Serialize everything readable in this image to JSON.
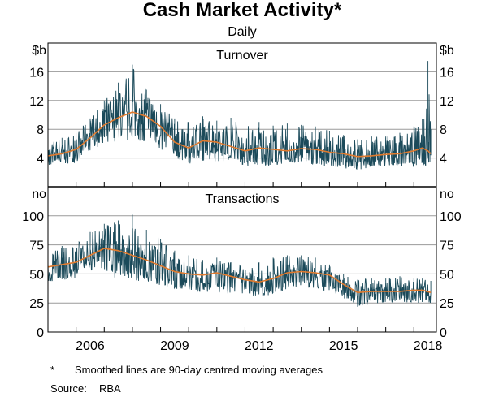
{
  "chart_data": {
    "type": "line",
    "title": "Cash Market Activity*",
    "subtitle": "Daily",
    "xlim": [
      2005,
      2018.8
    ],
    "x_ticks": [
      "2006",
      "2009",
      "2012",
      "2015",
      "2018"
    ],
    "panels": [
      {
        "title": "Turnover",
        "unit_left": "$b",
        "unit_right": "$b",
        "ylim": [
          0,
          20
        ],
        "y_ticks": [
          "4",
          "8",
          "12",
          "16"
        ],
        "series": [
          {
            "name": "Daily",
            "color": "#1b4a5a",
            "x": [
              2005.0,
              2005.5,
              2006.0,
              2006.5,
              2007.0,
              2007.5,
              2008.0,
              2008.5,
              2009.0,
              2009.5,
              2010.0,
              2010.5,
              2011.0,
              2011.5,
              2012.0,
              2012.5,
              2013.0,
              2013.5,
              2014.0,
              2014.5,
              2015.0,
              2015.5,
              2016.0,
              2016.5,
              2017.0,
              2017.5,
              2018.0,
              2018.3,
              2018.5,
              2018.6
            ],
            "low": [
              2.8,
              3.0,
              3.4,
              4.8,
              6.0,
              6.2,
              6.4,
              6.0,
              5.0,
              3.8,
              3.2,
              3.6,
              3.5,
              3.4,
              2.8,
              3.0,
              2.9,
              3.2,
              3.3,
              3.0,
              2.8,
              2.6,
              2.2,
              2.6,
              2.8,
              2.9,
              2.6,
              2.9,
              2.8,
              3.0
            ],
            "high": [
              6.4,
              6.8,
              7.5,
              9.5,
              12.0,
              14.5,
              17.0,
              13.5,
              11.5,
              9.5,
              9.0,
              9.8,
              9.2,
              9.6,
              8.6,
              9.0,
              8.5,
              8.8,
              8.6,
              8.4,
              7.8,
              7.2,
              6.6,
              7.0,
              7.0,
              7.5,
              8.4,
              9.4,
              17.5,
              8.0
            ]
          },
          {
            "name": "90-day centred moving average",
            "color": "#e07a2e",
            "x": [
              2005.0,
              2005.5,
              2006.0,
              2006.5,
              2007.0,
              2007.5,
              2008.0,
              2008.5,
              2009.0,
              2009.5,
              2010.0,
              2010.5,
              2011.0,
              2011.5,
              2012.0,
              2012.5,
              2013.0,
              2013.5,
              2014.0,
              2014.5,
              2015.0,
              2015.5,
              2016.0,
              2016.5,
              2017.0,
              2017.5,
              2018.0,
              2018.3,
              2018.5,
              2018.6
            ],
            "values": [
              4.3,
              4.6,
              5.2,
              6.8,
              8.6,
              9.6,
              10.4,
              9.8,
              8.4,
              6.2,
              5.4,
              6.4,
              6.2,
              5.6,
              5.0,
              5.4,
              5.2,
              5.0,
              5.3,
              5.2,
              4.8,
              4.6,
              4.2,
              4.3,
              4.5,
              4.6,
              5.0,
              5.4,
              5.0,
              4.6
            ]
          }
        ]
      },
      {
        "title": "Transactions",
        "unit_left": "no",
        "unit_right": "no",
        "ylim": [
          0,
          125
        ],
        "y_ticks": [
          "0",
          "25",
          "50",
          "75",
          "100"
        ],
        "series": [
          {
            "name": "Daily",
            "color": "#1b4a5a",
            "x": [
              2005.0,
              2005.5,
              2006.0,
              2006.5,
              2007.0,
              2007.5,
              2008.0,
              2008.5,
              2009.0,
              2009.5,
              2010.0,
              2010.5,
              2011.0,
              2011.5,
              2012.0,
              2012.5,
              2013.0,
              2013.5,
              2014.0,
              2014.5,
              2015.0,
              2015.5,
              2016.0,
              2016.5,
              2017.0,
              2017.5,
              2018.0,
              2018.3,
              2018.6
            ],
            "low": [
              42,
              44,
              46,
              52,
              52,
              45,
              44,
              44,
              40,
              37,
              36,
              34,
              34,
              32,
              30,
              31,
              32,
              37,
              38,
              37,
              35,
              30,
              21,
              24,
              25,
              26,
              25,
              25,
              25
            ],
            "high": [
              70,
              74,
              76,
              86,
              93,
              96,
              101,
              88,
              80,
              70,
              66,
              62,
              64,
              60,
              56,
              60,
              64,
              66,
              66,
              64,
              58,
              50,
              45,
              46,
              46,
              48,
              46,
              46,
              44
            ]
          },
          {
            "name": "90-day centred moving average",
            "color": "#e07a2e",
            "x": [
              2005.0,
              2005.5,
              2006.0,
              2006.5,
              2007.0,
              2007.5,
              2008.0,
              2008.5,
              2009.0,
              2009.5,
              2010.0,
              2010.5,
              2011.0,
              2011.5,
              2012.0,
              2012.5,
              2013.0,
              2013.5,
              2014.0,
              2014.5,
              2015.0,
              2015.5,
              2016.0,
              2016.5,
              2017.0,
              2017.5,
              2018.0,
              2018.3,
              2018.6
            ],
            "values": [
              56,
              58,
              60,
              66,
              72,
              70,
              66,
              62,
              57,
              52,
              50,
              49,
              51,
              48,
              45,
              43,
              46,
              51,
              52,
              51,
              49,
              41,
              34,
              35,
              35,
              35,
              36,
              36,
              34
            ]
          }
        ]
      }
    ]
  },
  "footnote": {
    "marker": "*",
    "text": "Smoothed lines are 90-day centred moving averages"
  },
  "source": {
    "label": "Source:",
    "text": "RBA"
  }
}
